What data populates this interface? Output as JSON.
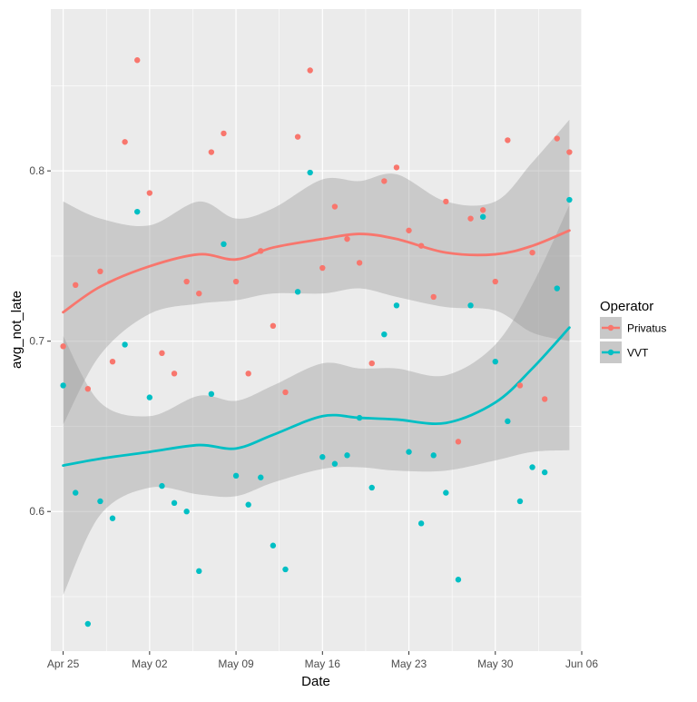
{
  "chart_data": {
    "type": "scatter",
    "xlabel": "Date",
    "ylabel": "avg_not_late",
    "x_ticks": [
      "Apr 25",
      "May 02",
      "May 09",
      "May 16",
      "May 23",
      "May 30",
      "Jun 06"
    ],
    "y_ticks": [
      "0.6",
      "0.7",
      "0.8"
    ],
    "x_range": [
      "2016-04-24",
      "2016-06-06"
    ],
    "ylim": [
      0.518,
      0.895
    ],
    "grid": true,
    "smoothing": "loess with confidence band",
    "legend": {
      "title": "Operator",
      "position": "right",
      "entries": [
        "Privatus",
        "VVT"
      ]
    },
    "colors": {
      "Privatus": "#F8766D",
      "VVT": "#00BFC4",
      "band": "#999999",
      "panel": "#EBEBEB",
      "grid": "#FFFFFF"
    },
    "series": [
      {
        "name": "Privatus",
        "color": "#F8766D",
        "points": [
          [
            "2016-04-25",
            0.697
          ],
          [
            "2016-04-26",
            0.733
          ],
          [
            "2016-04-27",
            0.672
          ],
          [
            "2016-04-28",
            0.741
          ],
          [
            "2016-04-29",
            0.688
          ],
          [
            "2016-04-30",
            0.817
          ],
          [
            "2016-05-01",
            0.865
          ],
          [
            "2016-05-02",
            0.787
          ],
          [
            "2016-05-03",
            0.693
          ],
          [
            "2016-05-04",
            0.681
          ],
          [
            "2016-05-05",
            0.735
          ],
          [
            "2016-05-06",
            0.728
          ],
          [
            "2016-05-07",
            0.811
          ],
          [
            "2016-05-08",
            0.822
          ],
          [
            "2016-05-09",
            0.735
          ],
          [
            "2016-05-10",
            0.681
          ],
          [
            "2016-05-11",
            0.753
          ],
          [
            "2016-05-12",
            0.709
          ],
          [
            "2016-05-13",
            0.67
          ],
          [
            "2016-05-14",
            0.82
          ],
          [
            "2016-05-15",
            0.859
          ],
          [
            "2016-05-16",
            0.743
          ],
          [
            "2016-05-17",
            0.779
          ],
          [
            "2016-05-18",
            0.76
          ],
          [
            "2016-05-19",
            0.746
          ],
          [
            "2016-05-20",
            0.687
          ],
          [
            "2016-05-21",
            0.794
          ],
          [
            "2016-05-22",
            0.802
          ],
          [
            "2016-05-23",
            0.765
          ],
          [
            "2016-05-24",
            0.756
          ],
          [
            "2016-05-25",
            0.726
          ],
          [
            "2016-05-26",
            0.782
          ],
          [
            "2016-05-27",
            0.641
          ],
          [
            "2016-05-28",
            0.772
          ],
          [
            "2016-05-29",
            0.777
          ],
          [
            "2016-05-30",
            0.735
          ],
          [
            "2016-05-31",
            0.818
          ],
          [
            "2016-06-01",
            0.674
          ],
          [
            "2016-06-02",
            0.752
          ],
          [
            "2016-06-03",
            0.666
          ],
          [
            "2016-06-04",
            0.819
          ],
          [
            "2016-06-05",
            0.811
          ]
        ],
        "smooth": [
          [
            "2016-04-25",
            0.717
          ],
          [
            "2016-04-28",
            0.732
          ],
          [
            "2016-05-02",
            0.744
          ],
          [
            "2016-05-06",
            0.751
          ],
          [
            "2016-05-09",
            0.748
          ],
          [
            "2016-05-12",
            0.755
          ],
          [
            "2016-05-16",
            0.76
          ],
          [
            "2016-05-19",
            0.763
          ],
          [
            "2016-05-22",
            0.76
          ],
          [
            "2016-05-26",
            0.752
          ],
          [
            "2016-05-30",
            0.751
          ],
          [
            "2016-06-02",
            0.756
          ],
          [
            "2016-06-05",
            0.765
          ]
        ],
        "band_upper": [
          [
            "2016-04-25",
            0.782
          ],
          [
            "2016-04-28",
            0.772
          ],
          [
            "2016-05-02",
            0.768
          ],
          [
            "2016-05-06",
            0.782
          ],
          [
            "2016-05-09",
            0.772
          ],
          [
            "2016-05-12",
            0.778
          ],
          [
            "2016-05-16",
            0.795
          ],
          [
            "2016-05-19",
            0.794
          ],
          [
            "2016-05-22",
            0.798
          ],
          [
            "2016-05-26",
            0.782
          ],
          [
            "2016-05-30",
            0.782
          ],
          [
            "2016-06-02",
            0.805
          ],
          [
            "2016-06-05",
            0.83
          ]
        ],
        "band_lower": [
          [
            "2016-04-25",
            0.651
          ],
          [
            "2016-04-28",
            0.692
          ],
          [
            "2016-05-02",
            0.716
          ],
          [
            "2016-05-06",
            0.722
          ],
          [
            "2016-05-09",
            0.724
          ],
          [
            "2016-05-12",
            0.728
          ],
          [
            "2016-05-16",
            0.728
          ],
          [
            "2016-05-19",
            0.731
          ],
          [
            "2016-05-22",
            0.726
          ],
          [
            "2016-05-26",
            0.72
          ],
          [
            "2016-05-30",
            0.718
          ],
          [
            "2016-06-02",
            0.705
          ],
          [
            "2016-06-05",
            0.7
          ]
        ]
      },
      {
        "name": "VVT",
        "color": "#00BFC4",
        "points": [
          [
            "2016-04-25",
            0.674
          ],
          [
            "2016-04-26",
            0.611
          ],
          [
            "2016-04-27",
            0.534
          ],
          [
            "2016-04-28",
            0.606
          ],
          [
            "2016-04-29",
            0.596
          ],
          [
            "2016-04-30",
            0.698
          ],
          [
            "2016-05-01",
            0.776
          ],
          [
            "2016-05-02",
            0.667
          ],
          [
            "2016-05-03",
            0.615
          ],
          [
            "2016-05-04",
            0.605
          ],
          [
            "2016-05-05",
            0.6
          ],
          [
            "2016-05-06",
            0.565
          ],
          [
            "2016-05-07",
            0.669
          ],
          [
            "2016-05-08",
            0.757
          ],
          [
            "2016-05-09",
            0.621
          ],
          [
            "2016-05-10",
            0.604
          ],
          [
            "2016-05-11",
            0.62
          ],
          [
            "2016-05-12",
            0.58
          ],
          [
            "2016-05-13",
            0.566
          ],
          [
            "2016-05-14",
            0.729
          ],
          [
            "2016-05-15",
            0.799
          ],
          [
            "2016-05-16",
            0.632
          ],
          [
            "2016-05-17",
            0.628
          ],
          [
            "2016-05-18",
            0.633
          ],
          [
            "2016-05-19",
            0.655
          ],
          [
            "2016-05-20",
            0.614
          ],
          [
            "2016-05-21",
            0.704
          ],
          [
            "2016-05-22",
            0.721
          ],
          [
            "2016-05-23",
            0.635
          ],
          [
            "2016-05-24",
            0.593
          ],
          [
            "2016-05-25",
            0.633
          ],
          [
            "2016-05-26",
            0.611
          ],
          [
            "2016-05-27",
            0.56
          ],
          [
            "2016-05-28",
            0.721
          ],
          [
            "2016-05-29",
            0.773
          ],
          [
            "2016-05-30",
            0.688
          ],
          [
            "2016-05-31",
            0.653
          ],
          [
            "2016-06-01",
            0.606
          ],
          [
            "2016-06-02",
            0.626
          ],
          [
            "2016-06-03",
            0.623
          ],
          [
            "2016-06-04",
            0.731
          ],
          [
            "2016-06-05",
            0.783
          ]
        ],
        "smooth": [
          [
            "2016-04-25",
            0.627
          ],
          [
            "2016-04-28",
            0.631
          ],
          [
            "2016-05-02",
            0.635
          ],
          [
            "2016-05-06",
            0.639
          ],
          [
            "2016-05-09",
            0.637
          ],
          [
            "2016-05-12",
            0.645
          ],
          [
            "2016-05-16",
            0.656
          ],
          [
            "2016-05-19",
            0.655
          ],
          [
            "2016-05-22",
            0.654
          ],
          [
            "2016-05-26",
            0.652
          ],
          [
            "2016-05-30",
            0.664
          ],
          [
            "2016-06-02",
            0.684
          ],
          [
            "2016-06-05",
            0.708
          ]
        ],
        "band_upper": [
          [
            "2016-04-25",
            0.703
          ],
          [
            "2016-04-28",
            0.664
          ],
          [
            "2016-05-02",
            0.656
          ],
          [
            "2016-05-06",
            0.668
          ],
          [
            "2016-05-09",
            0.665
          ],
          [
            "2016-05-12",
            0.674
          ],
          [
            "2016-05-16",
            0.687
          ],
          [
            "2016-05-19",
            0.684
          ],
          [
            "2016-05-22",
            0.684
          ],
          [
            "2016-05-26",
            0.68
          ],
          [
            "2016-05-30",
            0.698
          ],
          [
            "2016-06-02",
            0.733
          ],
          [
            "2016-06-05",
            0.78
          ]
        ],
        "band_lower": [
          [
            "2016-04-25",
            0.551
          ],
          [
            "2016-04-28",
            0.598
          ],
          [
            "2016-05-02",
            0.614
          ],
          [
            "2016-05-06",
            0.61
          ],
          [
            "2016-05-09",
            0.609
          ],
          [
            "2016-05-12",
            0.617
          ],
          [
            "2016-05-16",
            0.625
          ],
          [
            "2016-05-19",
            0.626
          ],
          [
            "2016-05-22",
            0.624
          ],
          [
            "2016-05-26",
            0.624
          ],
          [
            "2016-05-30",
            0.63
          ],
          [
            "2016-06-02",
            0.635
          ],
          [
            "2016-06-05",
            0.636
          ]
        ]
      }
    ]
  }
}
